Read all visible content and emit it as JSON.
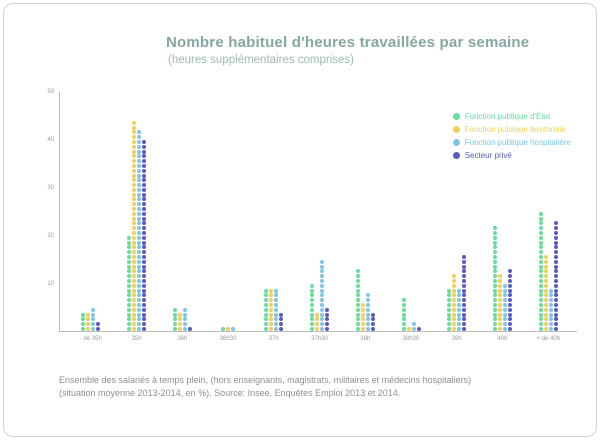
{
  "header": {
    "title": "Nombre habituel d'heures travaillées par semaine",
    "subtitle": "(heures supplémentaires comprises)"
  },
  "footer": {
    "line1": "Ensemble des salariés à temps plein, (hors enseignants, magistrats, militaires et médecins hospitaliers)",
    "line2": "(situation moyenne 2013-2014, en %). Source: Insee, Enquêtes Emploi 2013 et 2014."
  },
  "chart_data": {
    "type": "bar",
    "variant": "stacked-dot-columns",
    "title": "Nombre habituel d'heures travaillées par semaine",
    "subtitle": "(heures supplémentaires comprises)",
    "unit": "%",
    "categories": [
      "- de 35h",
      "35h",
      "36h",
      "36h30",
      "37h",
      "37h30",
      "38h",
      "38h30",
      "39h",
      "40h",
      "+ de 40h"
    ],
    "series": [
      {
        "name": "Fonction publique d'État",
        "color": "#66dd99",
        "values": [
          4,
          20,
          5,
          1,
          9,
          10,
          13,
          7,
          9,
          22,
          25
        ]
      },
      {
        "name": "Fonction publique territoriale",
        "color": "#efd158",
        "values": [
          4,
          44,
          4,
          1,
          9,
          4,
          6,
          1,
          12,
          12,
          16
        ]
      },
      {
        "name": "Fonction publique hospitalière",
        "color": "#7cc6e8",
        "values": [
          5,
          42,
          5,
          1,
          9,
          15,
          8,
          2,
          9,
          10,
          9
        ]
      },
      {
        "name": "Secteur privé",
        "color": "#5a5bc2",
        "values": [
          2,
          40,
          1,
          0,
          4,
          5,
          4,
          1,
          16,
          13,
          23
        ]
      }
    ],
    "xlabel": "",
    "ylabel": "",
    "ylim": [
      0,
      50
    ],
    "yticks": [
      10,
      20,
      30,
      40,
      50
    ],
    "grid": false,
    "legend_position": "top-right"
  }
}
